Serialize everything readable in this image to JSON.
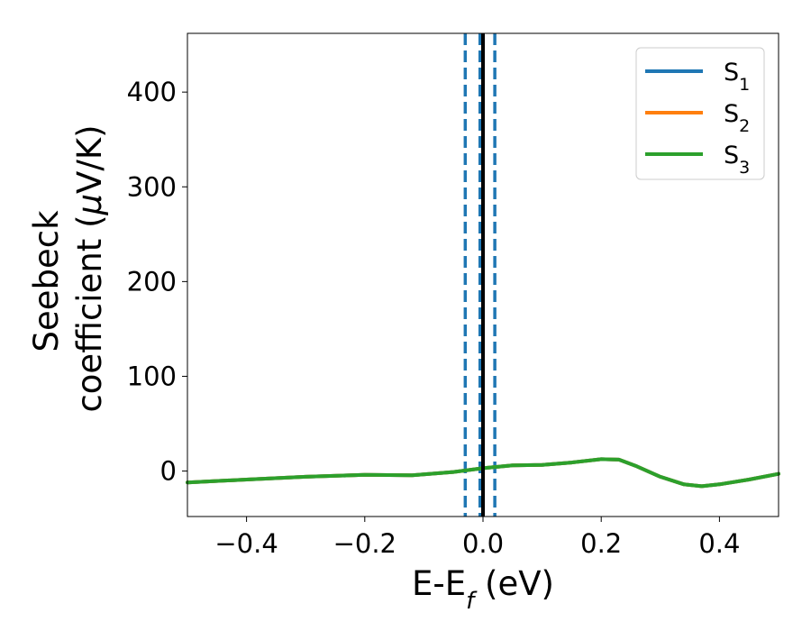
{
  "chart_data": {
    "type": "line",
    "xlabel": {
      "main": "E-E",
      "sub": "f",
      "tail": " (eV)"
    },
    "ylabel": {
      "line1": "Seebeck",
      "line2_prefix": "coefficient  (",
      "mu": "μ",
      "line2_suffix": "V/K)"
    },
    "xlim": [
      -0.5,
      0.5
    ],
    "ylim": [
      -48,
      462
    ],
    "x_ticks": [
      {
        "value": -0.4,
        "label": "−0.4"
      },
      {
        "value": -0.2,
        "label": "−0.2"
      },
      {
        "value": 0.0,
        "label": "0.0"
      },
      {
        "value": 0.2,
        "label": "0.2"
      },
      {
        "value": 0.4,
        "label": "0.4"
      }
    ],
    "y_ticks": [
      {
        "value": 0,
        "label": "0"
      },
      {
        "value": 100,
        "label": "100"
      },
      {
        "value": 200,
        "label": "200"
      },
      {
        "value": 300,
        "label": "300"
      },
      {
        "value": 400,
        "label": "400"
      }
    ],
    "grid": false,
    "legend_position": "top-right",
    "series": [
      {
        "name": "S",
        "name_sub": "1",
        "color": "#1f77b4",
        "x": [
          -0.5,
          -0.4,
          -0.3,
          -0.2,
          -0.12,
          -0.05,
          0.0,
          0.05,
          0.1,
          0.15,
          0.2,
          0.23,
          0.26,
          0.3,
          0.34,
          0.37,
          0.4,
          0.45,
          0.5
        ],
        "y": [
          -12,
          -9,
          -6,
          -4,
          -4.5,
          -1,
          3,
          6,
          6.5,
          9,
          12.5,
          12,
          5,
          -6,
          -14,
          -16,
          -14,
          -9,
          -3
        ]
      },
      {
        "name": "S",
        "name_sub": "2",
        "color": "#ff7f0e",
        "x": [
          -0.5,
          -0.4,
          -0.3,
          -0.2,
          -0.12,
          -0.05,
          0.0,
          0.05,
          0.1,
          0.15,
          0.2,
          0.23,
          0.26,
          0.3,
          0.34,
          0.37,
          0.4,
          0.45,
          0.5
        ],
        "y": [
          -12,
          -9,
          -6,
          -4,
          -4.5,
          -1,
          3,
          6,
          6.5,
          9,
          12.5,
          12,
          5,
          -6,
          -14,
          -16,
          -14,
          -9,
          -3
        ]
      },
      {
        "name": "S",
        "name_sub": "3",
        "color": "#2ca02c",
        "x": [
          -0.5,
          -0.4,
          -0.3,
          -0.2,
          -0.12,
          -0.05,
          0.0,
          0.05,
          0.1,
          0.15,
          0.2,
          0.23,
          0.26,
          0.3,
          0.34,
          0.37,
          0.4,
          0.45,
          0.5
        ],
        "y": [
          -12,
          -9,
          -6,
          -4,
          -4.5,
          -1,
          3,
          6,
          6.5,
          9,
          12.5,
          12,
          5,
          -6,
          -14,
          -16,
          -14,
          -9,
          -3
        ]
      }
    ],
    "vertical_lines": [
      {
        "x": -0.03,
        "style": "dashed",
        "color": "#1f77b4"
      },
      {
        "x": -0.005,
        "style": "dashed",
        "color": "#1f77b4"
      },
      {
        "x": 0.02,
        "style": "dashed",
        "color": "#1f77b4"
      },
      {
        "x": 0.0,
        "style": "solid",
        "color": "#000000"
      }
    ]
  }
}
